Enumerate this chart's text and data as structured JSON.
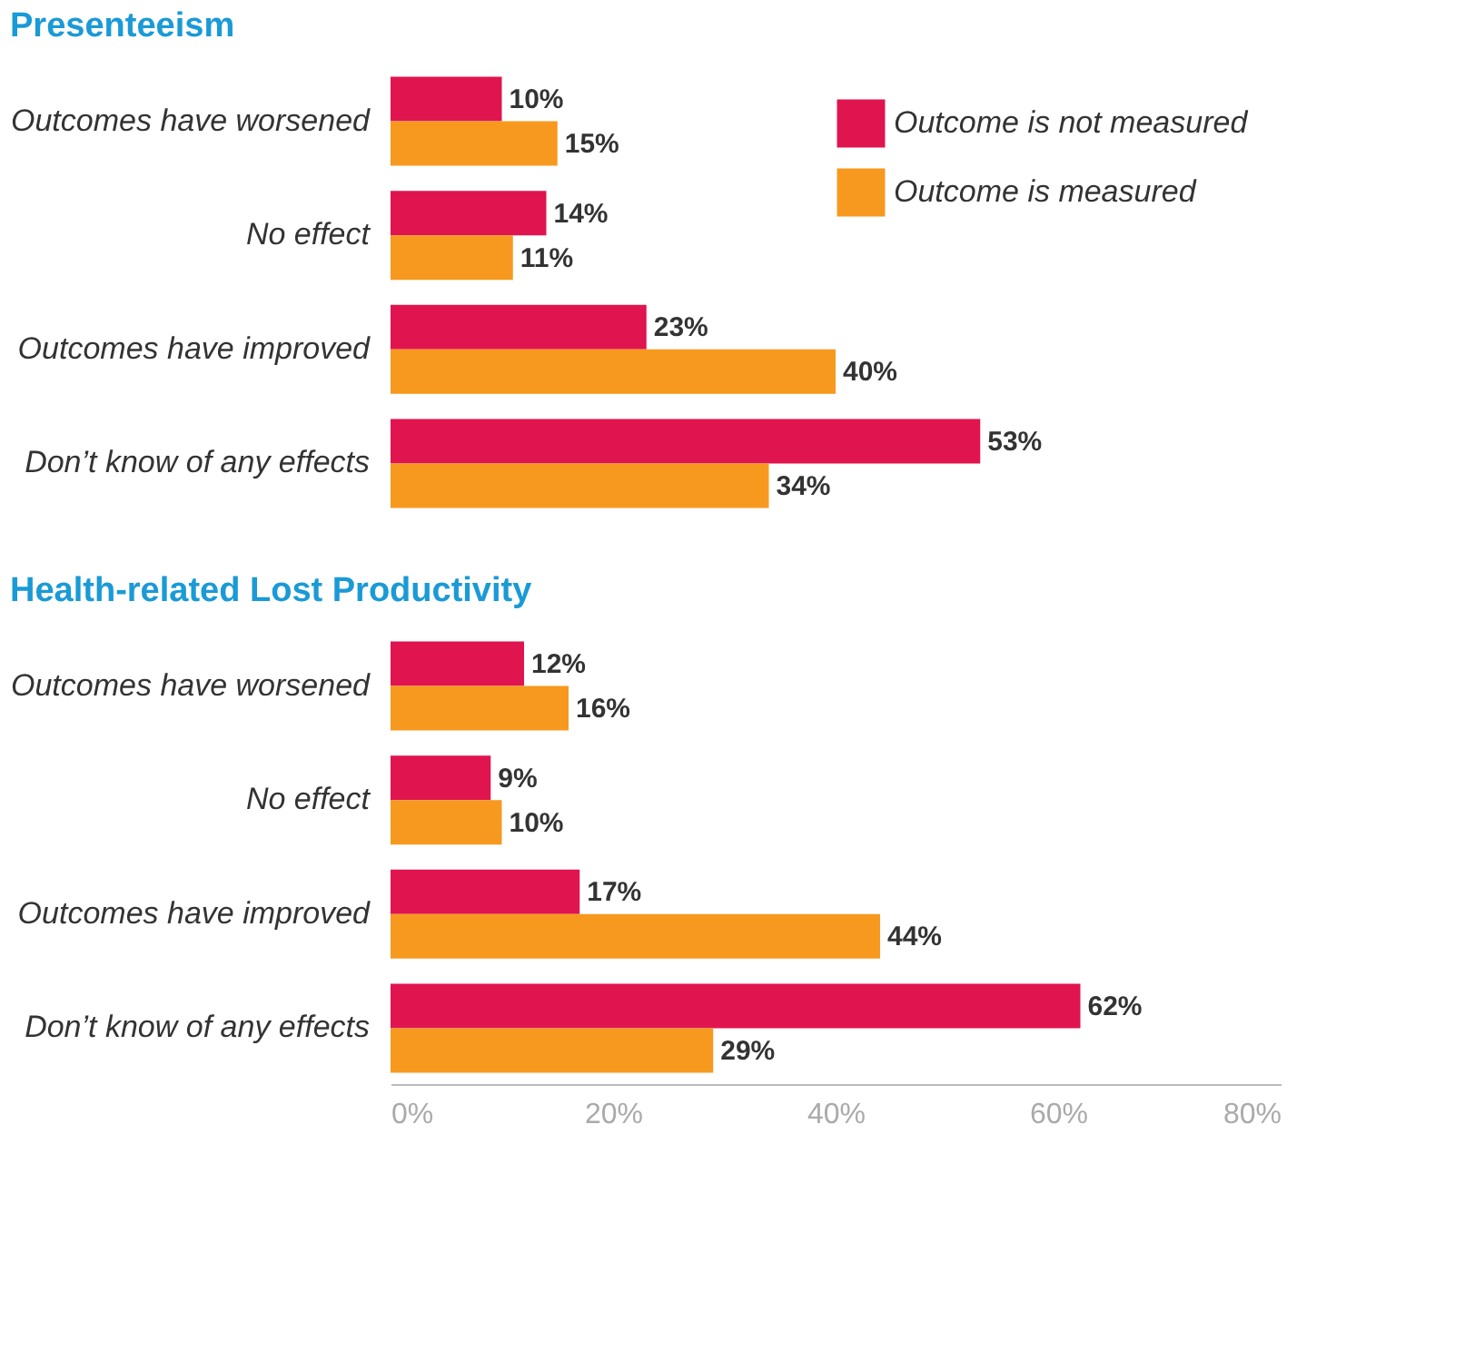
{
  "chart_data": [
    {
      "type": "bar",
      "orientation": "horizontal",
      "title": "Presenteeism",
      "categories": [
        "Outcomes have worsened",
        "No effect",
        "Outcomes have improved",
        "Don’t know of any effects"
      ],
      "series": [
        {
          "name": "Outcome is not measured",
          "color": "#e0144f",
          "values": [
            10,
            14,
            23,
            53
          ],
          "value_labels": [
            "10%",
            "14%",
            "23%",
            "53%"
          ]
        },
        {
          "name": "Outcome is measured",
          "color": "#f7991f",
          "values": [
            15,
            11,
            40,
            34
          ],
          "value_labels": [
            "15%",
            "11%",
            "40%",
            "34%"
          ]
        }
      ],
      "xlim": [
        0,
        80
      ],
      "legend": "top right",
      "tick_labels": "y",
      "grid": false
    },
    {
      "type": "bar",
      "orientation": "horizontal",
      "title": "Health-related Lost Productivity",
      "categories": [
        "Outcomes have worsened",
        "No effect",
        "Outcomes have improved",
        "Don’t know of any effects"
      ],
      "series": [
        {
          "color": "#e0144f",
          "values": [
            12,
            9,
            17,
            62
          ],
          "value_labels": [
            "12%",
            "9%",
            "17%",
            "62%"
          ]
        },
        {
          "color": "#f7991f",
          "values": [
            16,
            10,
            44,
            29
          ],
          "value_labels": [
            "16%",
            "10%",
            "44%",
            "29%"
          ]
        }
      ],
      "xlim": [
        0,
        80
      ],
      "xticks": [
        {
          "value": 0,
          "label": "0%"
        },
        {
          "value": 20,
          "label": "20%"
        },
        {
          "value": 40,
          "label": "40%"
        },
        {
          "value": 60,
          "label": "60%"
        },
        {
          "value": 80,
          "label": "80%"
        }
      ],
      "grid": false
    }
  ]
}
